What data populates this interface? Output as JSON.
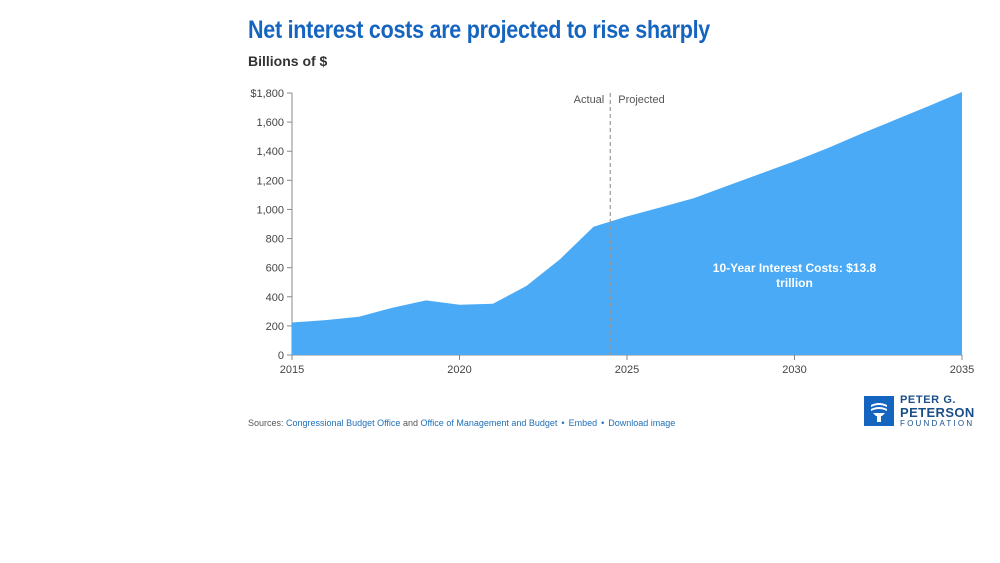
{
  "title": "Net interest costs are projected to rise sharply",
  "subtitle": "Billions of $",
  "chart_data": {
    "type": "area",
    "title": "Net interest costs are projected to rise sharply",
    "ylabel": "Billions of $",
    "xlabel": "",
    "x": [
      2015,
      2016,
      2017,
      2018,
      2019,
      2020,
      2021,
      2022,
      2023,
      2024,
      2025,
      2026,
      2027,
      2028,
      2029,
      2030,
      2031,
      2032,
      2033,
      2034,
      2035
    ],
    "series": [
      {
        "values": [
          223,
          240,
          263,
          325,
          375,
          345,
          352,
          475,
          658,
          881,
          952,
          1014,
          1078,
          1163,
          1247,
          1331,
          1422,
          1521,
          1615,
          1710,
          1807
        ],
        "color": "#4aaaf6"
      }
    ],
    "xlim": [
      2015,
      2035
    ],
    "ylim": [
      0,
      1800
    ],
    "x_ticks": [
      2015,
      2020,
      2025,
      2030,
      2035
    ],
    "x_tick_labels": [
      "2015",
      "2020",
      "2025",
      "2030",
      "2035"
    ],
    "y_ticks": [
      0,
      200,
      400,
      600,
      800,
      1000,
      1200,
      1400,
      1600,
      1800
    ],
    "y_tick_labels": [
      "0",
      "200",
      "400",
      "600",
      "800",
      "1,000",
      "1,200",
      "1,400",
      "1,600",
      "$1,800"
    ],
    "divider_x": 2024.5,
    "divider_labels": {
      "left": "Actual",
      "right": "Projected"
    },
    "annotation": {
      "line1": "10-Year Interest Costs: $13.8",
      "line2": "trillion",
      "x": 2030,
      "y": 570
    },
    "grid": false,
    "legend": "none"
  },
  "sources": {
    "prefix": "Sources: ",
    "link1": "Congressional Budget Office",
    "and_text": " and ",
    "link2": "Office of Management and Budget",
    "dot": "•",
    "embed": "Embed",
    "download": "Download image"
  },
  "logo": {
    "line1": "PETER G.",
    "line2": "PETERSON",
    "line3": "FOUNDATION"
  },
  "colors": {
    "title": "#1565c0",
    "area": "#4aaaf6",
    "link": "#1f6fb8"
  }
}
